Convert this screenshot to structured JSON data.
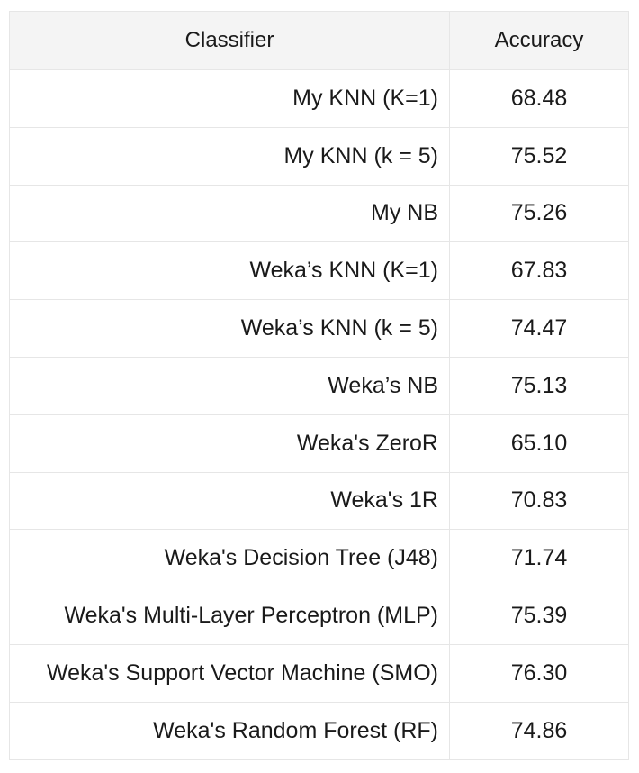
{
  "table": {
    "headers": [
      "Classifier",
      "Accuracy"
    ],
    "rows": [
      {
        "classifier": "My KNN (K=1)",
        "accuracy": "68.48"
      },
      {
        "classifier": "My KNN (k = 5)",
        "accuracy": "75.52"
      },
      {
        "classifier": "My NB",
        "accuracy": "75.26"
      },
      {
        "classifier": "Weka’s KNN (K=1)",
        "accuracy": "67.83"
      },
      {
        "classifier": "Weka’s KNN (k = 5)",
        "accuracy": "74.47"
      },
      {
        "classifier": "Weka’s NB",
        "accuracy": "75.13"
      },
      {
        "classifier": "Weka's ZeroR",
        "accuracy": "65.10"
      },
      {
        "classifier": "Weka's 1R",
        "accuracy": "70.83"
      },
      {
        "classifier": "Weka's Decision Tree (J48)",
        "accuracy": "71.74"
      },
      {
        "classifier": "Weka's Multi-Layer Perceptron (MLP)",
        "accuracy": "75.39"
      },
      {
        "classifier": "Weka's Support Vector Machine (SMO)",
        "accuracy": "76.30"
      },
      {
        "classifier": "Weka's Random Forest (RF)",
        "accuracy": "74.86"
      }
    ]
  }
}
